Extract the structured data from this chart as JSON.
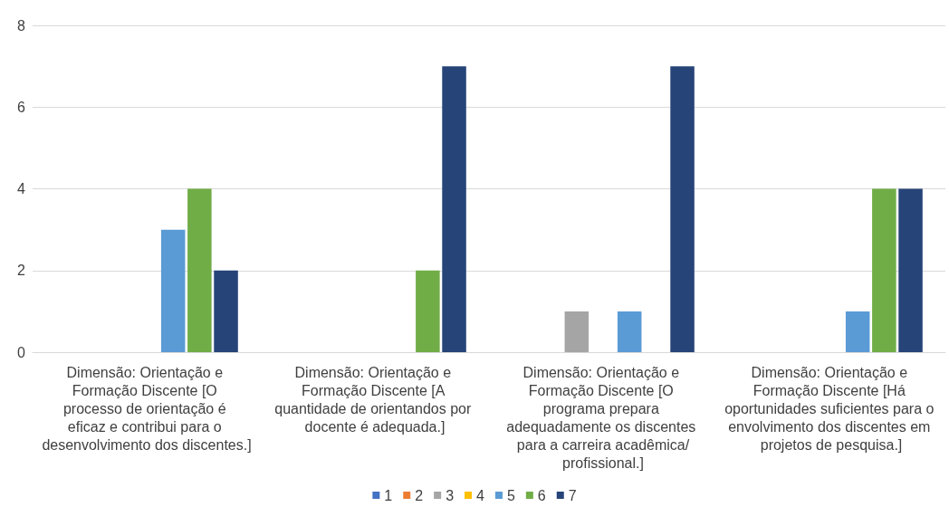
{
  "chart_data": {
    "type": "bar",
    "categories": [
      "Dimensão: Orientação e Formação Discente [O processo de orientação é eficaz e contribui para o desenvolvimento dos discentes.]",
      "Dimensão: Orientação e Formação Discente [A quantidade de orientandos por docente é adequada.]",
      "Dimensão: Orientação e Formação Discente [O programa prepara adequadamente os discentes para a carreira acadêmica/profissional.]",
      "Dimensão: Orientação e Formação Discente [Há oportunidades suficientes para o envolvimento dos discentes em projetos de pesquisa.]"
    ],
    "series": [
      {
        "name": "1",
        "color": "#4472c4",
        "values": [
          0,
          0,
          0,
          0
        ]
      },
      {
        "name": "2",
        "color": "#ed7d31",
        "values": [
          0,
          0,
          0,
          0
        ]
      },
      {
        "name": "3",
        "color": "#a5a5a5",
        "values": [
          0,
          0,
          1,
          0
        ]
      },
      {
        "name": "4",
        "color": "#ffc000",
        "values": [
          0,
          0,
          0,
          0
        ]
      },
      {
        "name": "5",
        "color": "#5b9bd5",
        "values": [
          3,
          0,
          1,
          1
        ]
      },
      {
        "name": "6",
        "color": "#70ad47",
        "values": [
          4,
          2,
          0,
          4
        ]
      },
      {
        "name": "7",
        "color": "#264478",
        "values": [
          2,
          7,
          7,
          4
        ]
      }
    ],
    "ylim": [
      0,
      8
    ],
    "yticks": [
      0,
      2,
      4,
      6,
      8
    ],
    "grid": "y",
    "legend": "bottom"
  }
}
